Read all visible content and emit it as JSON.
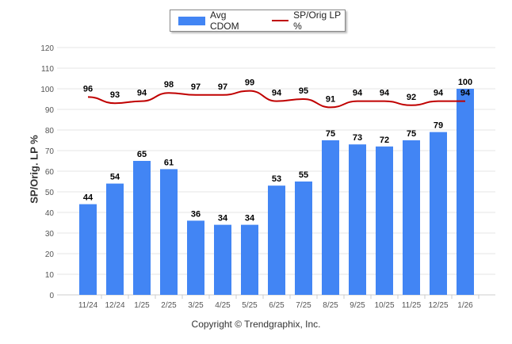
{
  "chart_data": {
    "type": "bar",
    "title": "",
    "xlabel": "",
    "ylabel": "SP/Orig. LP %",
    "ylim": [
      0,
      120
    ],
    "yticks": [
      0,
      10,
      20,
      30,
      40,
      50,
      60,
      70,
      80,
      90,
      100,
      110,
      120
    ],
    "categories": [
      "11/24",
      "12/24",
      "1/25",
      "2/25",
      "3/25",
      "4/25",
      "5/25",
      "6/25",
      "7/25",
      "8/25",
      "9/25",
      "10/25",
      "11/25",
      "12/25",
      "1/26"
    ],
    "series": [
      {
        "name": "Avg CDOM",
        "type": "bar",
        "color": "#4285f4",
        "values": [
          44,
          54,
          65,
          61,
          36,
          34,
          34,
          53,
          55,
          75,
          73,
          72,
          75,
          79,
          100
        ]
      },
      {
        "name": "SP/Orig LP %",
        "type": "line",
        "color": "#c00000",
        "values": [
          96,
          93,
          94,
          98,
          97,
          97,
          99,
          94,
          95,
          91,
          94,
          94,
          92,
          94,
          94
        ]
      }
    ],
    "legend_position": "top-center",
    "grid": true
  },
  "footer": {
    "copyright": "Copyright © Trendgraphix, Inc."
  }
}
